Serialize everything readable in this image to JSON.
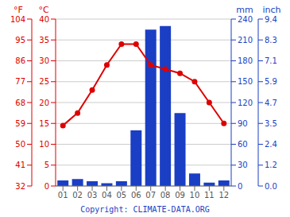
{
  "chart_data": {
    "type": "bar",
    "categories": [
      "01",
      "02",
      "03",
      "04",
      "05",
      "06",
      "07",
      "08",
      "09",
      "10",
      "11",
      "12"
    ],
    "series": [
      {
        "type": "bar",
        "axis": "y2",
        "color": "#1a3fc4",
        "values": [
          8,
          10,
          7,
          4,
          7,
          80,
          225,
          230,
          105,
          18,
          5,
          8
        ]
      },
      {
        "type": "line",
        "color": "#dd0000",
        "marker": "circle",
        "values": [
          14.5,
          17.5,
          23,
          29,
          34,
          34,
          29,
          28,
          27,
          25,
          20,
          15
        ]
      }
    ],
    "ylabel": "°C",
    "ylim": [
      0,
      40
    ],
    "yticks": [
      0,
      5,
      10,
      15,
      20,
      25,
      30,
      35,
      40
    ],
    "y2label": "mm",
    "y2lim": [
      0,
      240
    ],
    "y2ticks": [
      0,
      30,
      60,
      90,
      120,
      150,
      180,
      210,
      240
    ],
    "y3label": "°F",
    "y3lim": [
      32,
      104
    ],
    "y3ticks": [
      32,
      41,
      50,
      59,
      68,
      77,
      86,
      95,
      104
    ],
    "y4label": "inch",
    "y4lim": [
      0,
      240
    ],
    "y4ticks": [
      {
        "value": 0,
        "label": "0.0"
      },
      {
        "value": 30,
        "label": "1.2"
      },
      {
        "value": 60,
        "label": "2.4"
      },
      {
        "value": 90,
        "label": "3.5"
      },
      {
        "value": 120,
        "label": "4.7"
      },
      {
        "value": 150,
        "label": "5.9"
      },
      {
        "value": 180,
        "label": "7.1"
      },
      {
        "value": 210,
        "label": "8.3"
      },
      {
        "value": 240,
        "label": "9.4"
      }
    ],
    "grid": true,
    "annotations": [
      "Copyright: CLIMATE-DATA.ORG"
    ]
  }
}
